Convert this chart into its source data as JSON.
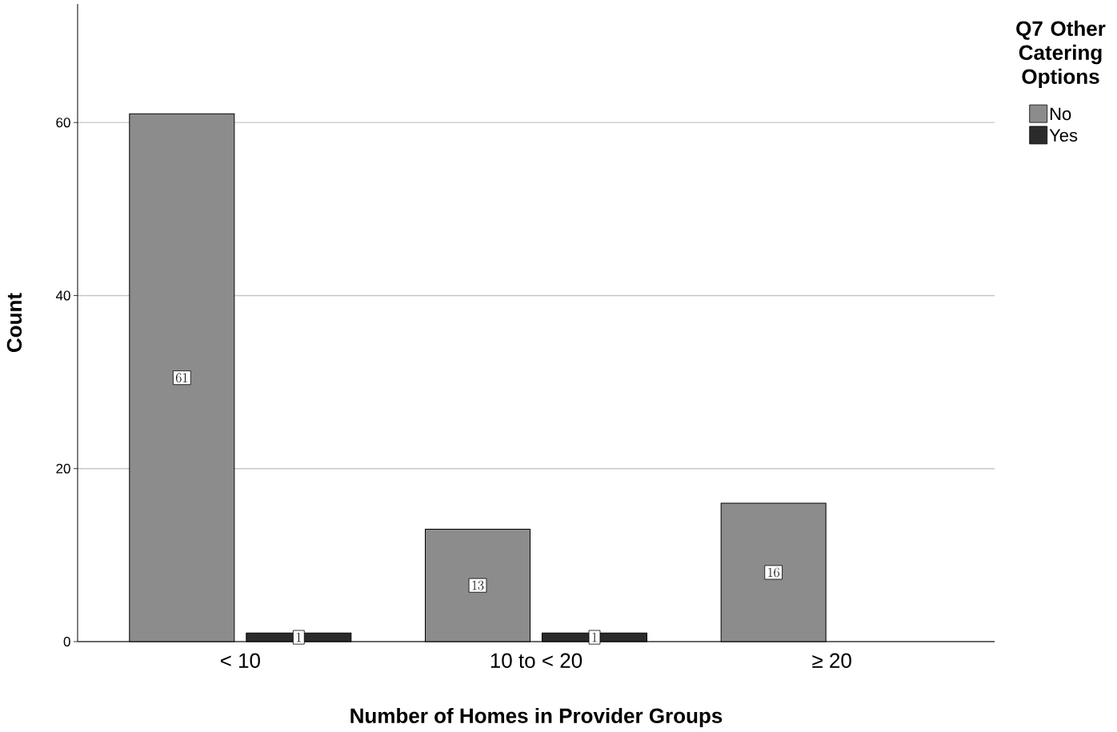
{
  "chart_data": {
    "type": "bar",
    "xlabel": "Number of Homes in Provider Groups",
    "ylabel": "Count",
    "legend_title": "Q7 Other Catering Options",
    "categories": [
      "< 10",
      "10 to < 20",
      "≥ 20"
    ],
    "series": [
      {
        "name": "No",
        "color": "#8c8c8c",
        "values": [
          61,
          13,
          16
        ]
      },
      {
        "name": "Yes",
        "color": "#2b2b2b",
        "values": [
          1,
          1,
          null
        ]
      }
    ],
    "ylim": [
      0,
      73.7
    ],
    "yticks": [
      0,
      20,
      40,
      60
    ],
    "grid": "y",
    "legend": "top right",
    "data_labels": true
  }
}
